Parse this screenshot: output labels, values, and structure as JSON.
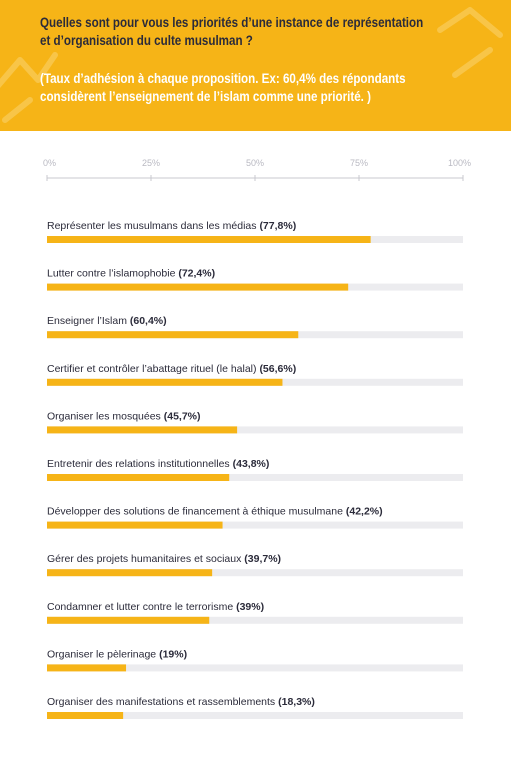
{
  "header": {
    "title_line1": "Quelles sont pour vous les priorités d’une instance de représentation",
    "title_line2": "et d’organisation du culte musulman ?",
    "subtitle_line1": "(Taux d’adhésion à chaque proposition. Ex: 60,4% des répondants",
    "subtitle_line2": "considèrent l’enseignement de l’islam comme une priorité. )"
  },
  "colors": {
    "header_bg": "#f6b417",
    "bar_fill": "#f6b417",
    "bar_track": "#ececef",
    "text": "#2b2b3a",
    "tick_text": "#b9b9c2",
    "subtitle_text": "#ffffff"
  },
  "chart_data": {
    "type": "bar",
    "orientation": "horizontal",
    "xlim": [
      0,
      100
    ],
    "tick_labels": [
      "0%",
      "25%",
      "50%",
      "75%",
      "100%"
    ],
    "ticks": [
      0,
      25,
      50,
      75,
      100
    ],
    "categories": [
      "Représenter les musulmans dans les médias",
      "Lutter contre l’islamophobie",
      "Enseigner l’Islam",
      "Certifier et contrôler l’abattage rituel (le halal)",
      "Organiser les mosquées",
      "Entretenir des relations institutionnelles",
      "Développer des solutions de financement à éthique musulmane",
      "Gérer des projets humanitaires et sociaux",
      "Condamner et lutter contre le terrorisme",
      "Organiser le pèlerinage",
      "Organiser des manifestations et rassemblements"
    ],
    "values": [
      77.8,
      72.4,
      60.4,
      56.6,
      45.7,
      43.8,
      42.2,
      39.7,
      39,
      19,
      18.3
    ],
    "value_labels": [
      "(77,8%)",
      "(72,4%)",
      "(60,4%)",
      "(56,6%)",
      "(45,7%)",
      "(43,8%)",
      "(42,2%)",
      "(39,7%)",
      "(39%)",
      "(19%)",
      "(18,3%)"
    ]
  }
}
